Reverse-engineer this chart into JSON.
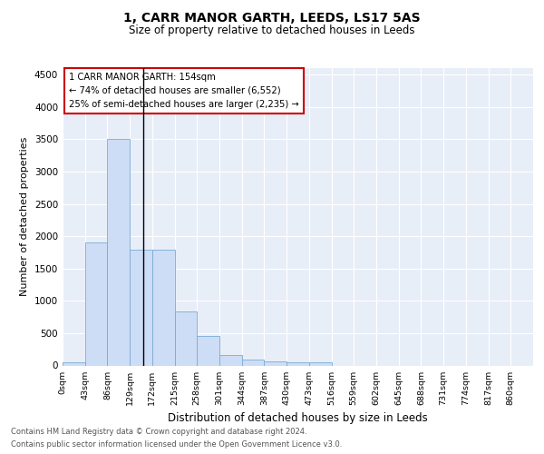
{
  "title1": "1, CARR MANOR GARTH, LEEDS, LS17 5AS",
  "title2": "Size of property relative to detached houses in Leeds",
  "xlabel": "Distribution of detached houses by size in Leeds",
  "ylabel": "Number of detached properties",
  "bar_labels": [
    "0sqm",
    "43sqm",
    "86sqm",
    "129sqm",
    "172sqm",
    "215sqm",
    "258sqm",
    "301sqm",
    "344sqm",
    "387sqm",
    "430sqm",
    "473sqm",
    "516sqm",
    "559sqm",
    "602sqm",
    "645sqm",
    "688sqm",
    "731sqm",
    "774sqm",
    "817sqm",
    "860sqm"
  ],
  "bar_values": [
    50,
    1900,
    3500,
    1790,
    1790,
    840,
    455,
    165,
    90,
    60,
    50,
    55,
    0,
    0,
    0,
    0,
    0,
    0,
    0,
    0,
    0
  ],
  "bar_color": "#cdddf5",
  "bar_edge_color": "#7aabd4",
  "bg_color": "#e8eef8",
  "annotation_text": "1 CARR MANOR GARTH: 154sqm\n← 74% of detached houses are smaller (6,552)\n25% of semi-detached houses are larger (2,235) →",
  "annotation_box_color": "#ffffff",
  "annotation_box_edge": "#cc0000",
  "property_line_bin": 3,
  "ylim": [
    0,
    4600
  ],
  "yticks": [
    0,
    500,
    1000,
    1500,
    2000,
    2500,
    3000,
    3500,
    4000,
    4500
  ],
  "footnote1": "Contains HM Land Registry data © Crown copyright and database right 2024.",
  "footnote2": "Contains public sector information licensed under the Open Government Licence v3.0."
}
